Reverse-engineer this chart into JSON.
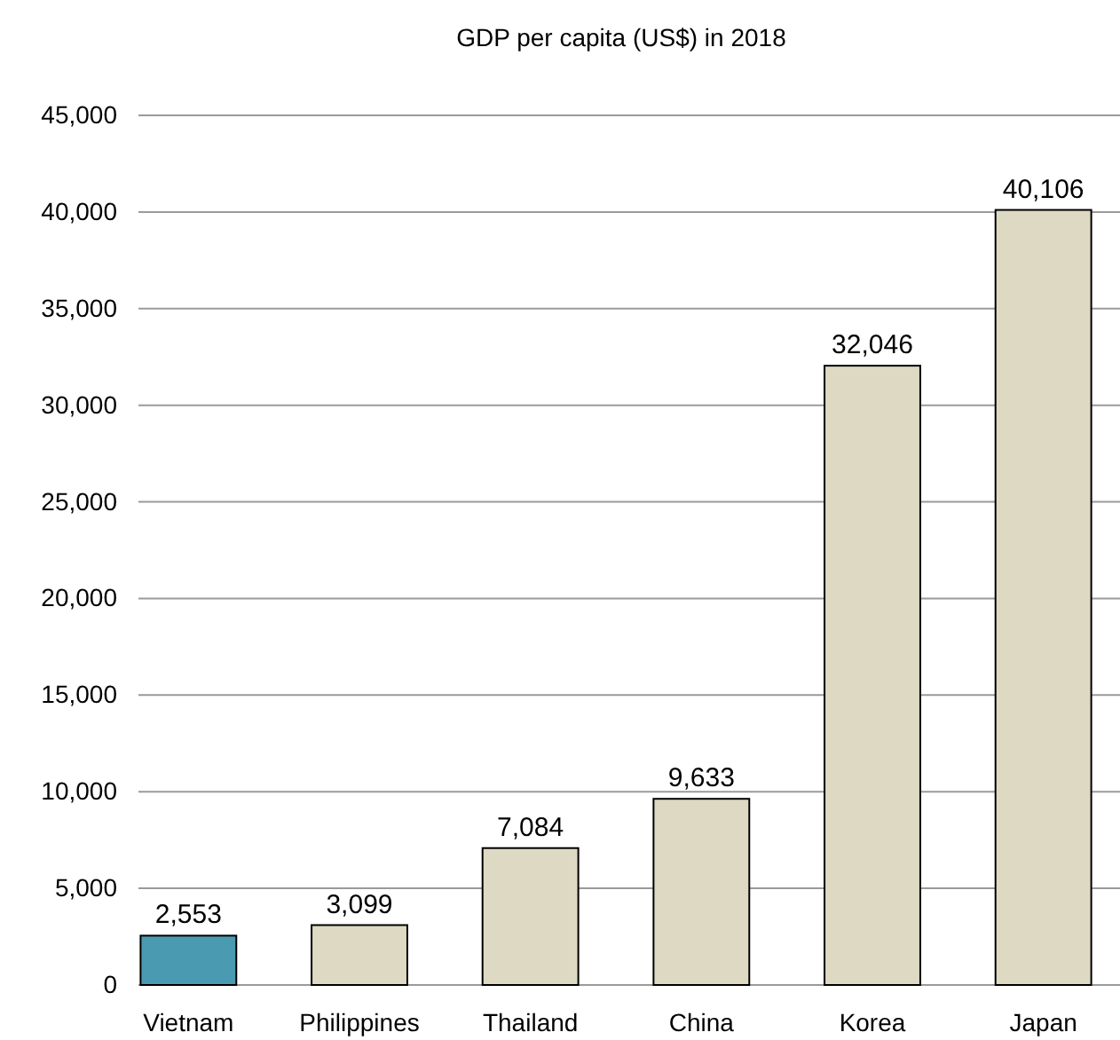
{
  "chart_data": {
    "type": "bar",
    "title": "GDP per capita (US$) in 2018",
    "categories": [
      "Vietnam",
      "Philippines",
      "Thailand",
      "China",
      "Korea",
      "Japan"
    ],
    "values": [
      2553,
      3099,
      7084,
      9633,
      32046,
      40106
    ],
    "colors": [
      "#4a9bb1",
      "#ddd9c3",
      "#ddd9c3",
      "#ddd9c3",
      "#ddd9c3",
      "#ddd9c3"
    ],
    "ylim": [
      0,
      45000
    ],
    "yticks": [
      {
        "value": 0,
        "label": "0"
      },
      {
        "value": 5000,
        "label": "5,000"
      },
      {
        "value": 10000,
        "label": "10,000"
      },
      {
        "value": 15000,
        "label": "15,000"
      },
      {
        "value": 20000,
        "label": "20,000"
      },
      {
        "value": 25000,
        "label": "25,000"
      },
      {
        "value": 30000,
        "label": "30,000"
      },
      {
        "value": 35000,
        "label": "35,000"
      },
      {
        "value": 40000,
        "label": "40,000"
      },
      {
        "value": 45000,
        "label": "45,000"
      }
    ],
    "value_labels": [
      "2,553",
      "3,099",
      "7,084",
      "9,633",
      "32,046",
      "40,106"
    ],
    "grid": "y"
  }
}
